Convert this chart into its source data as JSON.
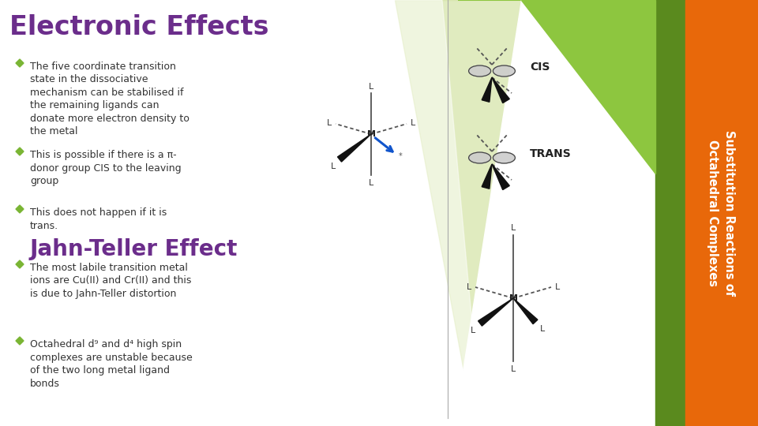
{
  "title": "Electronic Effects",
  "title_color": "#6B2D8B",
  "title_fontsize": 24,
  "bg_color": "#FFFFFF",
  "bullet_color": "#7AB534",
  "bullet_points_top": [
    "The five coordinate transition\nstate in the dissociative\nmechanism can be stabilised if\nthe remaining ligands can\ndonate more electron density to\nthe metal",
    "This is possible if there is a π-\ndonor group CIS to the leaving\ngroup",
    "This does not happen if it is\ntrans."
  ],
  "subtitle": "Jahn-Teller Effect",
  "subtitle_color": "#6B2D8B",
  "subtitle_fontsize": 20,
  "bullet_points_bottom": [
    "The most labile transition metal\nions are Cu(II) and Cr(II) and this\nis due to Jahn-Teller distortion",
    "Octahedral d⁹ and d⁴ high spin\ncomplexes are unstable because\nof the two long metal ligand\nbonds"
  ],
  "text_color": "#333333",
  "text_fontsize": 9,
  "right_panel_color": "#E8680A",
  "right_panel_text": "Substitution Reactions of\nOctahedral Complexes",
  "right_panel_text_color": "#FFFFFF",
  "dark_green_color": "#5A8A1E",
  "light_green_color": "#8DC63F",
  "pale_green_color": "#C8DC8C",
  "cis_label": "CIS",
  "trans_label": "TRANS"
}
